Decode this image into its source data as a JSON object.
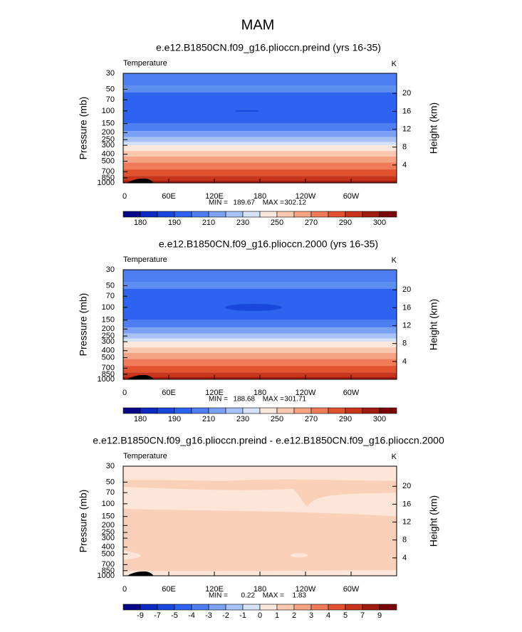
{
  "title": "MAM",
  "chart_data": [
    {
      "type": "contour",
      "title": "e.e12.B1850CN.f09_g16.plioccn.preind (yrs 16-35)",
      "left_label": "Temperature",
      "right_label": "K",
      "ylabel": "Pressure  (mb)",
      "y2label": "Height  (km)",
      "yscale": "log",
      "ylim": [
        1000,
        30
      ],
      "yticks": [
        30,
        50,
        70,
        100,
        150,
        200,
        250,
        300,
        400,
        500,
        700,
        850,
        1000
      ],
      "y2lim": [
        0,
        24.5
      ],
      "y2ticks": [
        4,
        8,
        12,
        16,
        20
      ],
      "xlim": [
        0,
        360
      ],
      "xticks": [
        0,
        {
          "value": 60,
          "label": "60E"
        },
        {
          "value": 120,
          "label": "120E"
        },
        180,
        {
          "value": 240,
          "label": "120W"
        },
        {
          "value": 300,
          "label": "60W"
        }
      ],
      "min_label": "MIN =",
      "min": 189.67,
      "max_label": "MAX =",
      "max": 302.12,
      "field": "absolute",
      "colorbar": {
        "labels": [
          180,
          190,
          210,
          230,
          250,
          270,
          290,
          300
        ],
        "colors": [
          "#08088a",
          "#0b2bc4",
          "#1747dd",
          "#2d63ee",
          "#4d7ff2",
          "#7aa1f4",
          "#a8c2f5",
          "#d5e2f7",
          "#fbe7dc",
          "#f9c8ae",
          "#f5a383",
          "#ef7b58",
          "#e3522f",
          "#c8351b",
          "#a11b10",
          "#7a0707"
        ]
      }
    },
    {
      "type": "contour",
      "title": "e.e12.B1850CN.f09_g16.plioccn.2000 (yrs 16-35)",
      "left_label": "Temperature",
      "right_label": "K",
      "ylabel": "Pressure  (mb)",
      "y2label": "Height  (km)",
      "yscale": "log",
      "ylim": [
        1000,
        30
      ],
      "yticks": [
        30,
        50,
        70,
        100,
        150,
        200,
        250,
        300,
        400,
        500,
        700,
        850,
        1000
      ],
      "y2lim": [
        0,
        24.5
      ],
      "y2ticks": [
        4,
        8,
        12,
        16,
        20
      ],
      "xlim": [
        0,
        360
      ],
      "xticks": [
        0,
        {
          "value": 60,
          "label": "60E"
        },
        {
          "value": 120,
          "label": "120E"
        },
        180,
        {
          "value": 240,
          "label": "120W"
        },
        {
          "value": 300,
          "label": "60W"
        }
      ],
      "min_label": "MIN =",
      "min": 188.68,
      "max_label": "MAX =",
      "max": 301.71,
      "field": "absolute-cold",
      "colorbar": {
        "labels": [
          180,
          190,
          210,
          230,
          250,
          270,
          290,
          300
        ],
        "colors": [
          "#08088a",
          "#0b2bc4",
          "#1747dd",
          "#2d63ee",
          "#4d7ff2",
          "#7aa1f4",
          "#a8c2f5",
          "#d5e2f7",
          "#fbe7dc",
          "#f9c8ae",
          "#f5a383",
          "#ef7b58",
          "#e3522f",
          "#c8351b",
          "#a11b10",
          "#7a0707"
        ]
      }
    },
    {
      "type": "contour",
      "title": "e.e12.B1850CN.f09_g16.plioccn.preind - e.e12.B1850CN.f09_g16.plioccn.2000",
      "left_label": "Temperature",
      "right_label": "K",
      "ylabel": "Pressure  (mb)",
      "y2label": "Height  (km)",
      "yscale": "log",
      "ylim": [
        1000,
        30
      ],
      "yticks": [
        30,
        50,
        70,
        100,
        150,
        200,
        250,
        300,
        400,
        500,
        700,
        850,
        1000
      ],
      "y2lim": [
        0,
        24.5
      ],
      "y2ticks": [
        4,
        8,
        12,
        16,
        20
      ],
      "xlim": [
        0,
        360
      ],
      "xticks": [
        0,
        {
          "value": 60,
          "label": "60E"
        },
        {
          "value": 120,
          "label": "120E"
        },
        180,
        {
          "value": 240,
          "label": "120W"
        },
        {
          "value": 300,
          "label": "60W"
        }
      ],
      "min_label": "MIN =",
      "min": 0.22,
      "max_label": "MAX =",
      "max": 1.83,
      "field": "difference",
      "colorbar": {
        "labels": [
          -9,
          -7,
          -5,
          -4,
          -3,
          -2,
          -1,
          0,
          1,
          2,
          3,
          4,
          5,
          7,
          9
        ],
        "colors": [
          "#08088a",
          "#0b2bc4",
          "#1747dd",
          "#2d63ee",
          "#4d7ff2",
          "#7aa1f4",
          "#a8c2f5",
          "#d5e2f7",
          "#fbe7dc",
          "#f9c8ae",
          "#f5a383",
          "#ef7b58",
          "#e3522f",
          "#c8351b",
          "#a11b10",
          "#7a0707"
        ]
      }
    }
  ]
}
